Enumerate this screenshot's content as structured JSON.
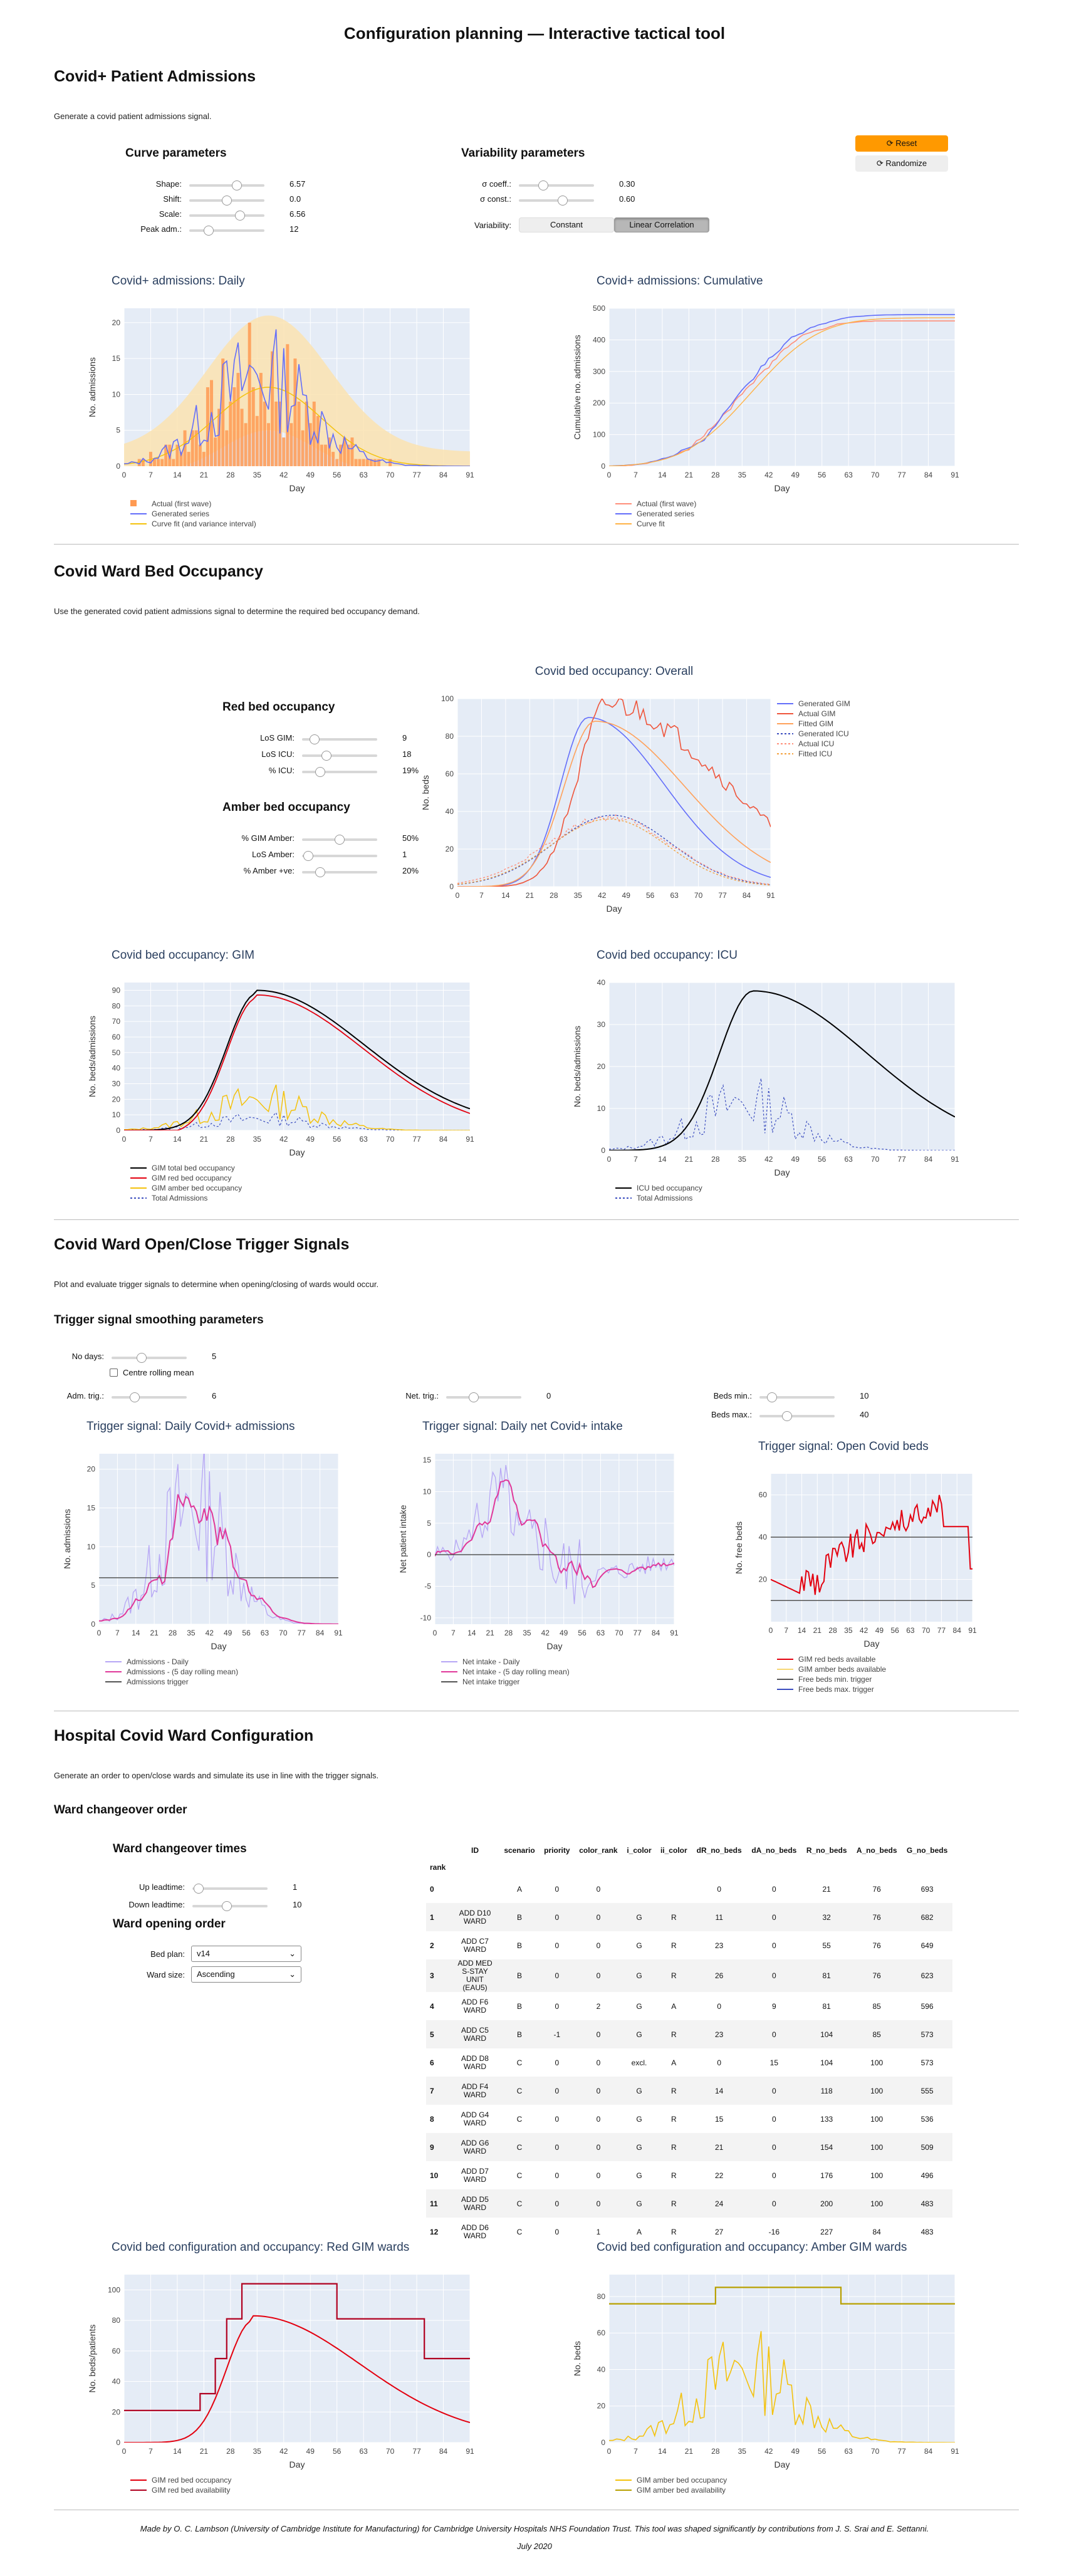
{
  "page_title": "Configuration planning — Interactive tactical tool",
  "s1": {
    "title": "Covid+ Patient Admissions",
    "desc": "Generate a covid patient admissions signal.",
    "curve_title": "Curve parameters",
    "curve_params": [
      {
        "label": "Shape:",
        "value": "6.57",
        "pos": 0.65
      },
      {
        "label": "Shift:",
        "value": "0.0",
        "pos": 0.5
      },
      {
        "label": "Scale:",
        "value": "6.56",
        "pos": 0.7
      },
      {
        "label": "Peak adm.:",
        "value": "12",
        "pos": 0.22
      }
    ],
    "var_title": "Variability parameters",
    "var_params": [
      {
        "label": "σ coeff.:",
        "value": "0.30",
        "pos": 0.3
      },
      {
        "label": "σ const.:",
        "value": "0.60",
        "pos": 0.6
      }
    ],
    "variability_label": "Variability:",
    "variability_options": [
      "Constant",
      "Linear Correlation"
    ],
    "reset_label": "Reset",
    "randomize_label": "Randomize"
  },
  "s2": {
    "title": "Covid Ward Bed Occupancy",
    "desc": "Use the generated covid patient admissions signal to determine the required bed occupancy demand.",
    "red_title": "Red bed occupancy",
    "red_params": [
      {
        "label": "LoS GIM:",
        "value": "9",
        "pos": 0.12
      },
      {
        "label": "LoS ICU:",
        "value": "18",
        "pos": 0.3
      },
      {
        "label": "% ICU:",
        "value": "19%",
        "pos": 0.2
      }
    ],
    "amber_title": "Amber bed occupancy",
    "amber_params": [
      {
        "label": "% GIM Amber:",
        "value": "50%",
        "pos": 0.5
      },
      {
        "label": "LoS Amber:",
        "value": "1",
        "pos": 0.02
      },
      {
        "label": "% Amber +ve:",
        "value": "20%",
        "pos": 0.2
      }
    ]
  },
  "s3": {
    "title": "Covid Ward Open/Close Trigger Signals",
    "desc": "Plot and evaluate trigger signals to determine when opening/closing of wards would occur.",
    "smooth_title": "Trigger signal smoothing parameters",
    "no_days": {
      "label": "No days:",
      "value": "5",
      "pos": 0.38
    },
    "centre_label": "Centre rolling mean",
    "adm_trig": {
      "label": "Adm. trig.:",
      "value": "6",
      "pos": 0.28
    },
    "net_trig": {
      "label": "Net. trig.:",
      "value": "0",
      "pos": 0.35
    },
    "beds_min": {
      "label": "Beds min.:",
      "value": "10",
      "pos": 0.12
    },
    "beds_max": {
      "label": "Beds max.:",
      "value": "40",
      "pos": 0.35
    }
  },
  "s4": {
    "title": "Hospital Covid Ward Configuration",
    "desc": "Generate an order to open/close wards and simulate its use in line with the trigger signals.",
    "change_title": "Ward changeover order",
    "times_title": "Ward changeover times",
    "up": {
      "label": "Up leadtime:",
      "value": "1",
      "pos": 0.02
    },
    "down": {
      "label": "Down leadtime:",
      "value": "10",
      "pos": 0.45
    },
    "open_title": "Ward opening order",
    "bed_plan_label": "Bed plan:",
    "bed_plan": "v14",
    "ward_size_label": "Ward size:",
    "ward_size": "Ascending",
    "table": {
      "columns": [
        "ID",
        "scenario",
        "priority",
        "color_rank",
        "i_color",
        "ii_color",
        "dR_no_beds",
        "dA_no_beds",
        "R_no_beds",
        "A_no_beds",
        "G_no_beds"
      ],
      "index_label": "rank",
      "rows": [
        [
          "0",
          "",
          "A",
          "0",
          "0",
          "",
          "",
          "0",
          "0",
          "21",
          "76",
          "693"
        ],
        [
          "1",
          "ADD D10 WARD",
          "B",
          "0",
          "0",
          "G",
          "R",
          "11",
          "0",
          "32",
          "76",
          "682"
        ],
        [
          "2",
          "ADD C7 WARD",
          "B",
          "0",
          "0",
          "G",
          "R",
          "23",
          "0",
          "55",
          "76",
          "649"
        ],
        [
          "3",
          "ADD MED S-STAY UNIT (EAU5)",
          "B",
          "0",
          "0",
          "G",
          "R",
          "26",
          "0",
          "81",
          "76",
          "623"
        ],
        [
          "4",
          "ADD F6 WARD",
          "B",
          "0",
          "2",
          "G",
          "A",
          "0",
          "9",
          "81",
          "85",
          "596"
        ],
        [
          "5",
          "ADD C5 WARD",
          "B",
          "-1",
          "0",
          "G",
          "R",
          "23",
          "0",
          "104",
          "85",
          "573"
        ],
        [
          "6",
          "ADD D8 WARD",
          "C",
          "0",
          "0",
          "excl.",
          "A",
          "0",
          "15",
          "104",
          "100",
          "573"
        ],
        [
          "7",
          "ADD F4 WARD",
          "C",
          "0",
          "0",
          "G",
          "R",
          "14",
          "0",
          "118",
          "100",
          "555"
        ],
        [
          "8",
          "ADD G4 WARD",
          "C",
          "0",
          "0",
          "G",
          "R",
          "15",
          "0",
          "133",
          "100",
          "536"
        ],
        [
          "9",
          "ADD G6 WARD",
          "C",
          "0",
          "0",
          "G",
          "R",
          "21",
          "0",
          "154",
          "100",
          "509"
        ],
        [
          "10",
          "ADD D7 WARD",
          "C",
          "0",
          "0",
          "G",
          "R",
          "22",
          "0",
          "176",
          "100",
          "496"
        ],
        [
          "11",
          "ADD D5 WARD",
          "C",
          "0",
          "0",
          "G",
          "R",
          "24",
          "0",
          "200",
          "100",
          "483"
        ],
        [
          "12",
          "ADD D6 WARD",
          "C",
          "0",
          "1",
          "A",
          "R",
          "27",
          "-16",
          "227",
          "84",
          "483"
        ]
      ]
    }
  },
  "footer": {
    "line1": "Made by O. C. Lambson (University of Cambridge Institute for Manufacturing) for Cambridge University Hospitals NHS Foundation Trust. This tool was shaped significantly by contributions from J. S. Srai and E. Settanni.",
    "line2": "July 2020"
  },
  "colors": {
    "blue": "#636efa",
    "orange_red": "#ef553b",
    "salmon": "#ff8f7a",
    "band": "#fbe3b0",
    "bar": "#ff9a52",
    "gold": "#f4c20d",
    "black": "#000000",
    "red": "#e3000f",
    "navy": "#3b4dbf",
    "plot_bg": "#e5ecf6",
    "accent": "#ff9900"
  },
  "chart_data": [
    {
      "id": "c1",
      "type": "bar",
      "title": "Covid+ admissions: Daily",
      "xlabel": "Day",
      "ylabel": "No. admissions",
      "xlim": [
        0,
        91
      ],
      "ylim": [
        0,
        22
      ],
      "xticks": [
        0,
        7,
        14,
        21,
        28,
        35,
        42,
        49,
        56,
        63,
        70,
        77,
        84,
        91
      ],
      "yticks": [
        0,
        5,
        10,
        15,
        20
      ],
      "legend": [
        "Actual (first wave)",
        "Generated series",
        "Curve fit (and variance interval)"
      ],
      "colors": [
        "#ff9a52",
        "#636efa",
        "#f4c20d"
      ],
      "synthetic": "daily"
    },
    {
      "id": "c2",
      "type": "line",
      "title": "Covid+ admissions: Cumulative",
      "xlabel": "Day",
      "ylabel": "Cumulative no. admissions",
      "xlim": [
        0,
        91
      ],
      "ylim": [
        0,
        500
      ],
      "xticks": [
        0,
        7,
        14,
        21,
        28,
        35,
        42,
        49,
        56,
        63,
        70,
        77,
        84,
        91
      ],
      "yticks": [
        0,
        100,
        200,
        300,
        400,
        500
      ],
      "legend": [
        "Actual (first wave)",
        "Generated series",
        "Curve fit"
      ],
      "colors": [
        "#ff8f7a",
        "#636efa",
        "#ffb347"
      ],
      "synthetic": "cumulative"
    },
    {
      "id": "c3",
      "type": "line",
      "title": "Covid bed occupancy: Overall",
      "xlabel": "Day",
      "ylabel": "No. beds",
      "xlim": [
        0,
        91
      ],
      "ylim": [
        0,
        100
      ],
      "xticks": [
        0,
        7,
        14,
        21,
        28,
        35,
        42,
        49,
        56,
        63,
        70,
        77,
        84,
        91
      ],
      "yticks": [
        0,
        20,
        40,
        60,
        80,
        100
      ],
      "legend": [
        "Generated GIM",
        "Actual GIM",
        "Fitted GIM",
        "Generated ICU",
        "Actual ICU",
        "Fitted ICU"
      ],
      "colors": [
        "#636efa",
        "#ef553b",
        "#ffa15a",
        "#3b4dbf",
        "#ff8f7a",
        "#f4a13d"
      ],
      "dashes": [
        false,
        false,
        false,
        true,
        true,
        true
      ],
      "synthetic": "overall"
    },
    {
      "id": "c4",
      "type": "line",
      "title": "Covid bed occupancy: GIM",
      "xlabel": "Day",
      "ylabel": "No. beds/admissions",
      "xlim": [
        0,
        91
      ],
      "ylim": [
        0,
        95
      ],
      "xticks": [
        0,
        7,
        14,
        21,
        28,
        35,
        42,
        49,
        56,
        63,
        70,
        77,
        84,
        91
      ],
      "yticks": [
        0,
        10,
        20,
        30,
        40,
        50,
        60,
        70,
        80,
        90
      ],
      "legend": [
        "GIM total bed occupancy",
        "GIM red bed occupancy",
        "GIM amber bed occupancy",
        "Total Admissions"
      ],
      "colors": [
        "#000000",
        "#e3000f",
        "#f4c20d",
        "#3b4dbf"
      ],
      "dashes": [
        false,
        false,
        false,
        true
      ],
      "synthetic": "gim"
    },
    {
      "id": "c5",
      "type": "line",
      "title": "Covid bed occupancy: ICU",
      "xlabel": "Day",
      "ylabel": "No. beds/admissions",
      "xlim": [
        0,
        91
      ],
      "ylim": [
        0,
        40
      ],
      "xticks": [
        0,
        7,
        14,
        21,
        28,
        35,
        42,
        49,
        56,
        63,
        70,
        77,
        84,
        91
      ],
      "yticks": [
        0,
        10,
        20,
        30,
        40
      ],
      "legend": [
        "ICU bed occupancy",
        "Total Admissions"
      ],
      "colors": [
        "#000000",
        "#3b4dbf"
      ],
      "dashes": [
        false,
        true
      ],
      "synthetic": "icu"
    },
    {
      "id": "c6",
      "type": "line",
      "title": "Trigger signal: Daily Covid+ admissions",
      "xlabel": "Day",
      "ylabel": "No. admissions",
      "xlim": [
        0,
        91
      ],
      "ylim": [
        0,
        22
      ],
      "xticks": [
        0,
        7,
        14,
        21,
        28,
        35,
        42,
        49,
        56,
        63,
        70,
        77,
        84,
        91
      ],
      "yticks": [
        0,
        5,
        10,
        15,
        20
      ],
      "legend": [
        "Admissions - Daily",
        "Admissions - (5 day rolling mean)",
        "Admissions trigger"
      ],
      "colors": [
        "#b6a6f5",
        "#e0389a",
        "#555555"
      ],
      "synthetic": "trig_adm"
    },
    {
      "id": "c7",
      "type": "line",
      "title": "Trigger signal: Daily net Covid+ intake",
      "xlabel": "Day",
      "ylabel": "Net patient intake",
      "xlim": [
        0,
        91
      ],
      "ylim": [
        -11,
        16
      ],
      "xticks": [
        0,
        7,
        14,
        21,
        28,
        35,
        42,
        49,
        56,
        63,
        70,
        77,
        84,
        91
      ],
      "yticks": [
        -10,
        -5,
        0,
        5,
        10,
        15
      ],
      "legend": [
        "Net intake - Daily",
        "Net intake - (5 day rolling mean)",
        "Net intake trigger"
      ],
      "colors": [
        "#b6a6f5",
        "#e0389a",
        "#555555"
      ],
      "synthetic": "trig_net"
    },
    {
      "id": "c8",
      "type": "line",
      "title": "Trigger signal: Open Covid beds",
      "xlabel": "Day",
      "ylabel": "No. free beds",
      "xlim": [
        0,
        91
      ],
      "ylim": [
        0,
        70
      ],
      "xticks": [
        0,
        7,
        14,
        21,
        28,
        35,
        42,
        49,
        56,
        63,
        70,
        77,
        84,
        91
      ],
      "yticks": [
        20,
        40,
        60
      ],
      "legend": [
        "GIM red beds available",
        "GIM amber beds available",
        "Free beds min. trigger",
        "Free beds max. trigger"
      ],
      "colors": [
        "#e3000f",
        "#f7d774",
        "#555555",
        "#3b4dbf"
      ],
      "synthetic": "trig_beds"
    },
    {
      "id": "c9",
      "type": "line",
      "title": "Covid bed configuration and occupancy: Red GIM wards",
      "xlabel": "Day",
      "ylabel": "No. beds/patients",
      "xlim": [
        0,
        91
      ],
      "ylim": [
        0,
        110
      ],
      "xticks": [
        0,
        7,
        14,
        21,
        28,
        35,
        42,
        49,
        56,
        63,
        70,
        77,
        84,
        91
      ],
      "yticks": [
        0,
        20,
        40,
        60,
        80,
        100
      ],
      "legend": [
        "GIM red bed occupancy",
        "GIM red bed availability"
      ],
      "colors": [
        "#e3000f",
        "#b00020"
      ],
      "synthetic": "red_cfg"
    },
    {
      "id": "c10",
      "type": "line",
      "title": "Covid bed configuration and occupancy: Amber GIM wards",
      "xlabel": "Day",
      "ylabel": "No. beds",
      "xlim": [
        0,
        91
      ],
      "ylim": [
        0,
        92
      ],
      "xticks": [
        0,
        7,
        14,
        21,
        28,
        35,
        42,
        49,
        56,
        63,
        70,
        77,
        84,
        91
      ],
      "yticks": [
        0,
        20,
        40,
        60,
        80
      ],
      "legend": [
        "GIM amber bed occupancy",
        "GIM amber bed availability"
      ],
      "colors": [
        "#f4c20d",
        "#b8a000"
      ],
      "synthetic": "amber_cfg"
    }
  ]
}
